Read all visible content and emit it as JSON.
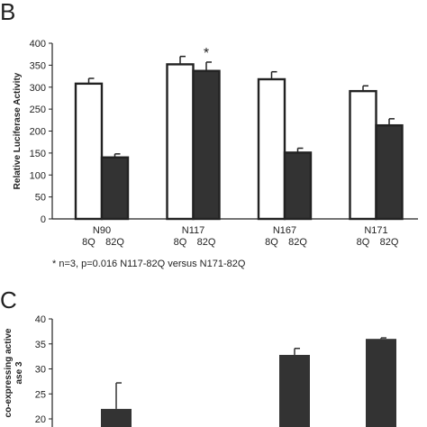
{
  "panel_b_letter": "B",
  "panel_c_letter": "C",
  "footnote": "* n=3, p=0.016 N117-82Q versus N171-82Q",
  "chart_data": [
    {
      "panel": "B",
      "type": "bar",
      "ylabel": "Relative Luciferase Activity",
      "ylim": [
        0,
        400
      ],
      "yticks": [
        0,
        50,
        100,
        150,
        200,
        250,
        300,
        350,
        400
      ],
      "categories": [
        "N90",
        "N117",
        "N167",
        "N171"
      ],
      "sub_labels": [
        "8Q",
        "82Q"
      ],
      "series": [
        {
          "name": "8Q",
          "fill": "#ffffff",
          "values": [
            308,
            352,
            318,
            291
          ],
          "errors": [
            12,
            18,
            17,
            12
          ]
        },
        {
          "name": "82Q",
          "fill": "#333333",
          "values": [
            140,
            337,
            151,
            213
          ],
          "errors": [
            8,
            20,
            10,
            15
          ]
        }
      ],
      "annotation": {
        "text": "*",
        "category": "N117",
        "series": "82Q"
      },
      "grid": false,
      "legend": "none"
    },
    {
      "panel": "C",
      "type": "bar",
      "ylabel": "co-expressing active\nase 3",
      "ylim_visible": [
        20,
        40
      ],
      "yticks": [
        20,
        25,
        30,
        35,
        40
      ],
      "values": [
        22,
        32.8,
        36
      ],
      "errors": [
        5.2,
        1.3,
        0.2
      ],
      "fill": "#333333",
      "grid": false,
      "legend": "none"
    }
  ]
}
